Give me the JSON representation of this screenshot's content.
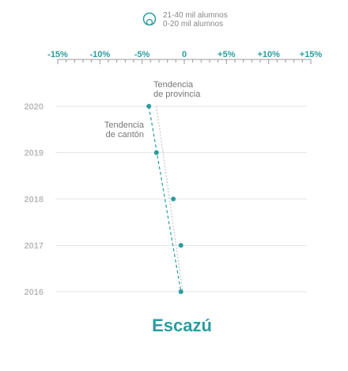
{
  "legend": {
    "items": [
      "21-40 mil alumnos",
      "0-20 mil alumnos"
    ]
  },
  "chart_data": {
    "type": "scatter",
    "title": "Escazú",
    "x_ticks": [
      "-15%",
      "-10%",
      "-5%",
      "0",
      "+5%",
      "+10%",
      "+15%"
    ],
    "xlim": [
      -15,
      15
    ],
    "x_tick_values": [
      -15,
      -10,
      -5,
      0,
      5,
      10,
      15
    ],
    "minor_tick_step": 1,
    "categories": [
      "2020",
      "2019",
      "2018",
      "2017",
      "2016"
    ],
    "series": [
      {
        "values": [
          -4.2,
          -3.3,
          -1.3,
          -0.4,
          -0.4
        ]
      }
    ],
    "trend_lines": [
      {
        "label": "Tendencia\nde provincia",
        "from": [
          -3.3,
          "2020"
        ],
        "to": [
          -0.2,
          "2016"
        ]
      },
      {
        "label": "Tendencia\nde cantón",
        "from": [
          -4.2,
          "2020"
        ],
        "to": [
          -0.4,
          "2016"
        ]
      }
    ],
    "grid": true,
    "colors": {
      "accent": "#2a9d9f",
      "grid": "#e6e6e6",
      "year": "#bbbbbb",
      "trend_province": "#bbbbbb"
    }
  }
}
